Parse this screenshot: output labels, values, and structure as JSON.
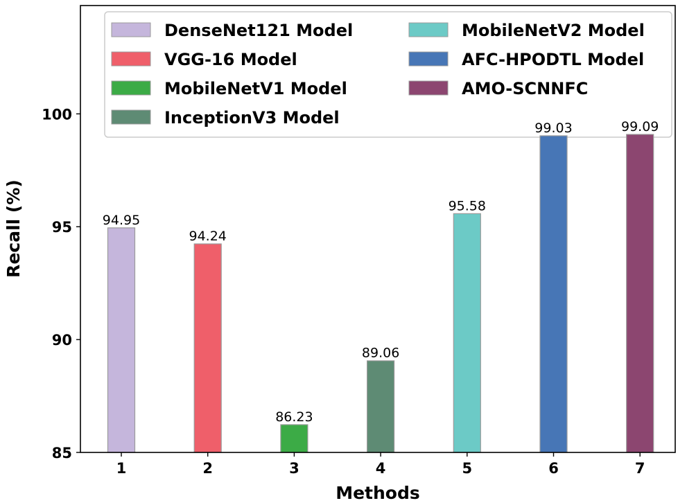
{
  "chart_data": {
    "type": "bar",
    "title": "",
    "xlabel": "Methods",
    "ylabel": "Recall (%)",
    "ylim": [
      85,
      104.8
    ],
    "yticks": [
      85,
      90,
      95,
      100
    ],
    "categories": [
      "1",
      "2",
      "3",
      "4",
      "5",
      "6",
      "7"
    ],
    "values": [
      94.95,
      94.24,
      86.23,
      89.06,
      95.58,
      99.03,
      99.09
    ],
    "data_labels": [
      "94.95",
      "94.24",
      "86.23",
      "89.06",
      "95.58",
      "99.03",
      "99.09"
    ],
    "series_names": [
      "DenseNet121 Model",
      "VGG-16 Model",
      "MobileNetV1 Model",
      "InceptionV3 Model",
      "MobileNetV2 Model",
      "AFC-HPODTL Model",
      "AMO-SCNNFC"
    ],
    "colors": [
      "#c5b6dc",
      "#ef5f6a",
      "#3cab46",
      "#5e8b74",
      "#6ccac6",
      "#4776b6",
      "#8c4670"
    ],
    "legend_position": "top",
    "grid": false
  }
}
